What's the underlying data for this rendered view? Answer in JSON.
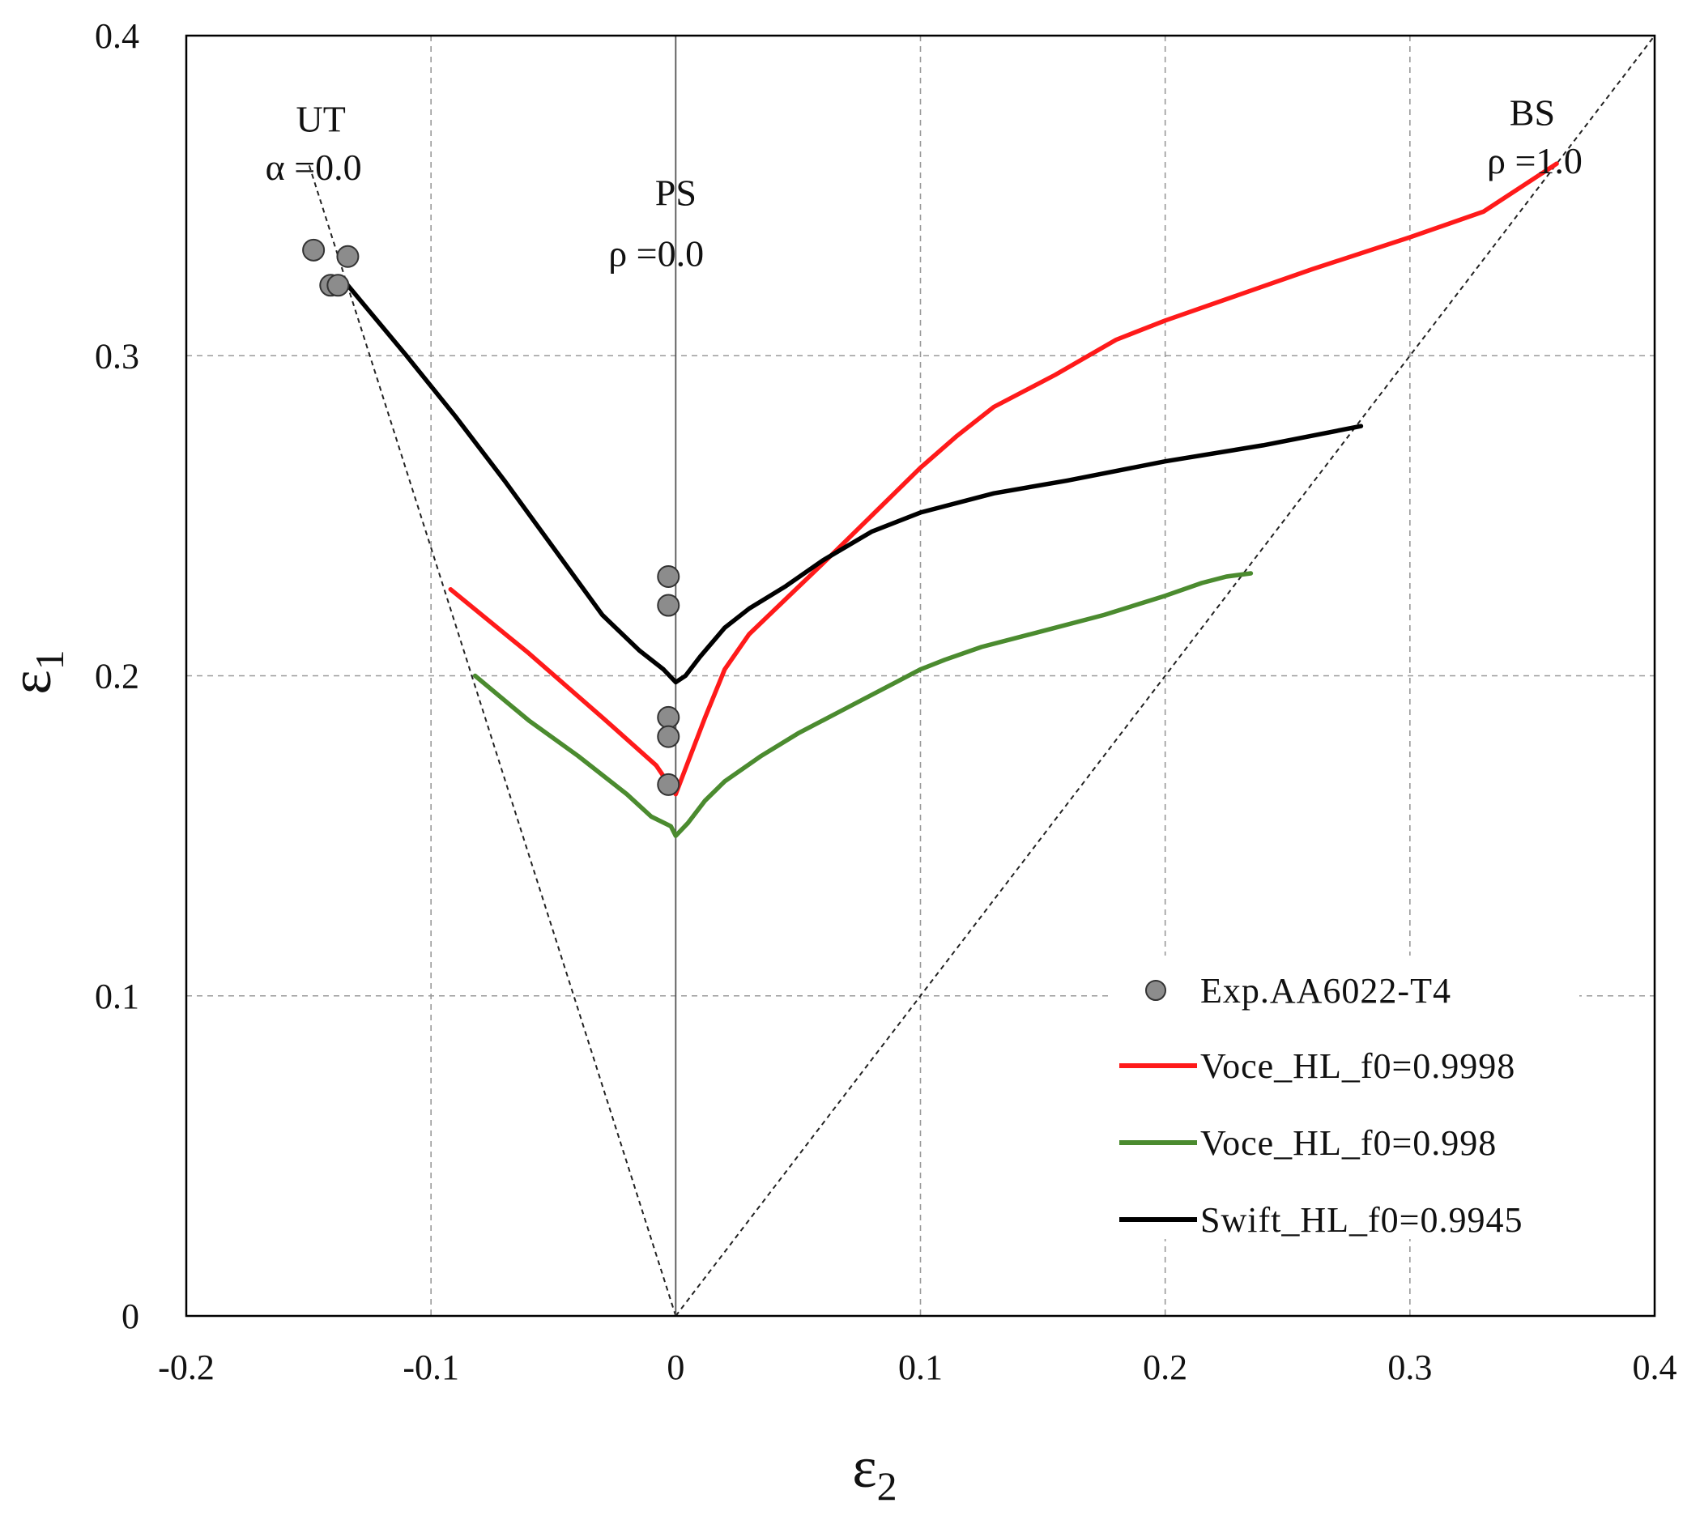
{
  "chart_data": {
    "type": "line",
    "title": "",
    "xlabel_main": "ε",
    "xlabel_sub": "2",
    "ylabel_main": "ε",
    "ylabel_sub": "1",
    "xlim": [
      -0.2,
      0.4
    ],
    "ylim": [
      0,
      0.4
    ],
    "x_ticks": [
      -0.2,
      -0.1,
      0,
      0.1,
      0.2,
      0.3,
      0.4
    ],
    "x_tick_labels": [
      "-0.2",
      "-0.1",
      "0",
      "0.1",
      "0.2",
      "0.3",
      "0.4"
    ],
    "y_ticks": [
      0,
      0.1,
      0.2,
      0.3,
      0.4
    ],
    "y_tick_labels": [
      "0",
      "0.1",
      "0.2",
      "0.3",
      "0.4"
    ],
    "grid": true,
    "legend_position": "bottom-right",
    "annotations": [
      {
        "id": "ut-name",
        "text": "UT",
        "x": -0.145,
        "y": 0.37
      },
      {
        "id": "ut-alpha",
        "text": "α =0.0",
        "x": -0.148,
        "y": 0.355
      },
      {
        "id": "ps-name",
        "text": "PS",
        "x": 0.0,
        "y": 0.347
      },
      {
        "id": "ps-rho",
        "text": "ρ =0.0",
        "x": -0.008,
        "y": 0.328
      },
      {
        "id": "bs-name",
        "text": "BS",
        "x": 0.35,
        "y": 0.372
      },
      {
        "id": "bs-rho",
        "text": "ρ =1.0",
        "x": 0.351,
        "y": 0.357
      }
    ],
    "reference_lines": [
      {
        "name": "uniaxial-tension-path",
        "x": [
          0,
          -0.15
        ],
        "y": [
          0,
          0.36
        ]
      },
      {
        "name": "biaxial-stretch-path",
        "x": [
          0,
          0.4
        ],
        "y": [
          0,
          0.4
        ]
      },
      {
        "name": "plane-strain-axis",
        "x": [
          0,
          0
        ],
        "y": [
          0,
          0.4
        ]
      }
    ],
    "scatter": {
      "name": "Exp.AA6022-T4",
      "color": "#8c8c8c",
      "points": [
        {
          "x": -0.148,
          "y": 0.333
        },
        {
          "x": -0.141,
          "y": 0.322
        },
        {
          "x": -0.138,
          "y": 0.322
        },
        {
          "x": -0.134,
          "y": 0.331
        },
        {
          "x": -0.003,
          "y": 0.231
        },
        {
          "x": -0.003,
          "y": 0.222
        },
        {
          "x": -0.003,
          "y": 0.187
        },
        {
          "x": -0.003,
          "y": 0.181
        },
        {
          "x": -0.003,
          "y": 0.166
        }
      ]
    },
    "series": [
      {
        "name": "Voce_HL_f0=0.9998",
        "color": "#ff1a1a",
        "x": [
          -0.092,
          -0.06,
          -0.03,
          -0.008,
          0.0,
          0.005,
          0.012,
          0.02,
          0.03,
          0.045,
          0.06,
          0.08,
          0.1,
          0.115,
          0.13,
          0.155,
          0.18,
          0.2,
          0.23,
          0.26,
          0.3,
          0.33,
          0.36
        ],
        "y": [
          0.227,
          0.207,
          0.187,
          0.172,
          0.163,
          0.173,
          0.187,
          0.202,
          0.213,
          0.224,
          0.235,
          0.25,
          0.265,
          0.275,
          0.284,
          0.294,
          0.305,
          0.311,
          0.319,
          0.327,
          0.337,
          0.345,
          0.36
        ]
      },
      {
        "name": "Voce_HL_f0=0.998",
        "color": "#4b8b2f",
        "x": [
          -0.082,
          -0.06,
          -0.04,
          -0.02,
          -0.01,
          -0.002,
          0.0,
          0.005,
          0.012,
          0.02,
          0.035,
          0.05,
          0.07,
          0.09,
          0.1,
          0.11,
          0.125,
          0.15,
          0.175,
          0.2,
          0.215,
          0.225,
          0.235
        ],
        "y": [
          0.2,
          0.186,
          0.175,
          0.163,
          0.156,
          0.153,
          0.15,
          0.154,
          0.161,
          0.167,
          0.175,
          0.182,
          0.19,
          0.198,
          0.202,
          0.205,
          0.209,
          0.214,
          0.219,
          0.225,
          0.229,
          0.231,
          0.232
        ]
      },
      {
        "name": "Swift_HL_f0=0.9945",
        "color": "#000000",
        "x": [
          -0.134,
          -0.11,
          -0.09,
          -0.07,
          -0.05,
          -0.03,
          -0.015,
          -0.005,
          0.0,
          0.004,
          0.01,
          0.02,
          0.03,
          0.045,
          0.06,
          0.08,
          0.1,
          0.13,
          0.16,
          0.2,
          0.24,
          0.28
        ],
        "y": [
          0.322,
          0.3,
          0.281,
          0.261,
          0.24,
          0.219,
          0.208,
          0.202,
          0.198,
          0.2,
          0.206,
          0.215,
          0.221,
          0.228,
          0.236,
          0.245,
          0.251,
          0.257,
          0.261,
          0.267,
          0.272,
          0.278
        ]
      }
    ]
  }
}
